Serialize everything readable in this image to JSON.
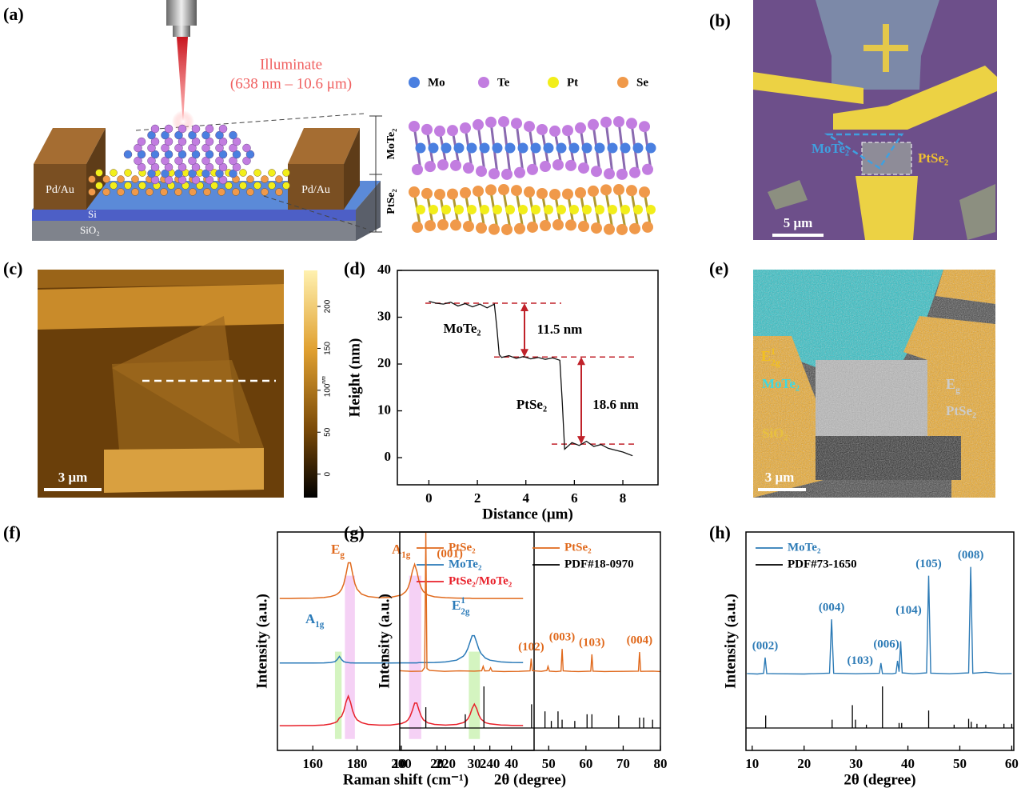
{
  "panel_labels": [
    "(a)",
    "(b)",
    "(c)",
    "(d)",
    "(e)",
    "(f)",
    "(g)",
    "(h)"
  ],
  "panel_a": {
    "illuminate": "Illuminate",
    "wavelength": "(638 nm – 10.6 μm)",
    "atoms": [
      {
        "name": "Mo",
        "color": "#4a7fe0"
      },
      {
        "name": "Te",
        "color": "#c27de0"
      },
      {
        "name": "Pt",
        "color": "#f2ee1a"
      },
      {
        "name": "Se",
        "color": "#f0994a"
      }
    ],
    "electrodes": [
      "Pd/Au",
      "Pd/Au"
    ],
    "si": "Si",
    "sio2": "SiO₂",
    "layers": [
      "MoTe₂",
      "PtSe₂"
    ]
  },
  "panel_b": {
    "mote2": "MoTe₂",
    "ptse2": "PtSe₂",
    "scale_bar": "5 μm"
  },
  "panel_c": {
    "scale_bar": "3 μm",
    "colorbar": {
      "range": [
        -28,
        243
      ],
      "ticks": [
        0,
        50,
        100,
        150,
        200
      ],
      "unit": "nm"
    }
  },
  "panel_e": {
    "e2g": {
      "base": "E",
      "sup": "1",
      "sub": "2g"
    },
    "mote2": "MoTe₂",
    "eg": {
      "base": "E",
      "sub": "g"
    },
    "ptse2": "PtSe₂",
    "sio2": "SiO₂",
    "scale_bar": "3 μm"
  },
  "chart_data": [
    {
      "type": "line",
      "xlabel": "Distance (μm)",
      "ylabel": "Height (nm)",
      "xlim": [
        -1.3,
        9.45
      ],
      "ylim": [
        -5.8,
        40
      ],
      "xticks": [
        0,
        2,
        4,
        6,
        8
      ],
      "yticks": [
        0,
        10,
        20,
        30,
        40
      ],
      "color": "#111111",
      "x": [
        0,
        0.3,
        0.6,
        0.9,
        1.2,
        1.5,
        1.8,
        2.1,
        2.4,
        2.7,
        2.8,
        2.9,
        3.0,
        3.3,
        3.6,
        3.9,
        4.2,
        4.5,
        4.8,
        5.1,
        5.4,
        5.5,
        5.6,
        5.9,
        6.2,
        6.5,
        6.8,
        7.1,
        7.4,
        7.7,
        8.0,
        8.2,
        8.4
      ],
      "values": [
        33.4,
        33.0,
        32.8,
        33.2,
        32.4,
        32.9,
        32.2,
        32.8,
        32.0,
        32.8,
        28,
        22,
        21.4,
        21.8,
        21.2,
        21.6,
        21.1,
        21.4,
        21.0,
        21.3,
        20.8,
        12,
        1.8,
        3.2,
        2.6,
        3.5,
        2.4,
        2.8,
        2.0,
        1.6,
        1.2,
        0.8,
        0.4
      ],
      "reference_lines": [
        33.0,
        21.5,
        2.9
      ],
      "reference_color": "#c0222a",
      "annotations": [
        "MoTe₂",
        "PtSe₂",
        "11.5 nm",
        "18.6 nm"
      ]
    },
    {
      "type": "line",
      "xlabel": "Raman shift (cm⁻¹)",
      "ylabel": "Intensity (a.u.)",
      "xlim": [
        144,
        260
      ],
      "ylim": [
        0,
        11.5
      ],
      "xticks": [
        160,
        180,
        200,
        220,
        240
      ],
      "legend": "top-right",
      "x": [
        145,
        150,
        155,
        160,
        165,
        168,
        170,
        171,
        172,
        173,
        174,
        175,
        176,
        177,
        178,
        179,
        180,
        182,
        185,
        190,
        195,
        200,
        202,
        203,
        204,
        205,
        206,
        207,
        208,
        209,
        210,
        212,
        215,
        220,
        225,
        228,
        229,
        230,
        231,
        232,
        233,
        234,
        235,
        236,
        238,
        240,
        245,
        250,
        255
      ],
      "series": [
        {
          "name": "PtSe₂",
          "color": "#e0691c",
          "values": [
            8.0,
            8.0,
            8.01,
            8.02,
            8.05,
            8.1,
            8.17,
            8.23,
            8.33,
            8.49,
            8.78,
            9.28,
            9.88,
            9.88,
            9.28,
            8.78,
            8.49,
            8.23,
            8.1,
            8.04,
            8.06,
            8.18,
            8.36,
            8.56,
            8.9,
            9.44,
            9.8,
            9.44,
            8.9,
            8.56,
            8.36,
            8.18,
            8.09,
            8.04,
            8.02,
            8.01,
            8.01,
            8.01,
            8.01,
            8.0,
            8.0,
            8.0,
            8.0,
            8.0,
            8.0,
            8.0,
            8.0,
            8.0,
            8.0
          ]
        },
        {
          "name": "MoTe₂",
          "color": "#2a7ab8",
          "values": [
            4.6,
            4.6,
            4.6,
            4.6,
            4.61,
            4.63,
            4.67,
            4.78,
            4.95,
            4.78,
            4.67,
            4.64,
            4.62,
            4.61,
            4.61,
            4.6,
            4.6,
            4.6,
            4.6,
            4.6,
            4.6,
            4.61,
            4.61,
            4.61,
            4.61,
            4.61,
            4.61,
            4.61,
            4.62,
            4.62,
            4.62,
            4.62,
            4.63,
            4.66,
            4.75,
            4.96,
            5.11,
            5.35,
            5.7,
            6.04,
            6.04,
            5.7,
            5.35,
            5.11,
            4.86,
            4.75,
            4.66,
            4.63,
            4.62
          ]
        },
        {
          "name": "PtSe₂/MoTe₂",
          "color": "#e8202a",
          "values": [
            1.3,
            1.3,
            1.31,
            1.31,
            1.34,
            1.39,
            1.46,
            1.52,
            1.71,
            1.8,
            2.08,
            2.55,
            2.86,
            2.55,
            2.08,
            1.78,
            1.61,
            1.46,
            1.37,
            1.33,
            1.33,
            1.41,
            1.51,
            1.61,
            1.8,
            2.11,
            2.49,
            2.49,
            2.11,
            1.8,
            1.61,
            1.45,
            1.37,
            1.33,
            1.37,
            1.46,
            1.53,
            1.65,
            1.87,
            2.21,
            2.44,
            2.21,
            1.87,
            1.65,
            1.46,
            1.4,
            1.34,
            1.32,
            1.31
          ]
        }
      ],
      "bands": [
        {
          "x": [
            174.5,
            179
          ],
          "y": [
            0.6,
            9.2
          ],
          "color": "#f3c9f3"
        },
        {
          "x": [
            203.5,
            209
          ],
          "y": [
            0.6,
            9.2
          ],
          "color": "#f3c9f3"
        },
        {
          "x": [
            170,
            173
          ],
          "y": [
            0.6,
            5.2
          ],
          "color": "#cdf2b5"
        },
        {
          "x": [
            230.5,
            235.5
          ],
          "y": [
            0.6,
            5.2
          ],
          "color": "#cdf2b5"
        }
      ],
      "peak_names": [
        {
          "base": "E",
          "sub": "g",
          "color": "#e0691c"
        },
        {
          "base": "A",
          "sub": "1g",
          "color": "#e0691c"
        },
        {
          "base": "A",
          "sub": "1g",
          "color": "#2a7ab8"
        },
        {
          "base": "E",
          "sup": "1",
          "sub": "2g",
          "color": "#2a7ab8"
        }
      ]
    },
    {
      "type": "xrd",
      "xlabel": "2θ (degree)",
      "ylabel": "Intensity (a.u.)",
      "xlim": [
        10,
        80
      ],
      "ylim": [
        0,
        100
      ],
      "xticks": [
        10,
        20,
        30,
        40,
        50,
        60,
        70,
        80
      ],
      "legend": "top-right",
      "series": [
        {
          "name": "PtSe₂",
          "color": "#e0691c",
          "x": [
            10,
            13,
            16,
            16.7,
            17.0,
            17.3,
            18,
            22,
            26,
            30,
            32,
            32.4,
            32.8,
            34,
            34.4,
            34.8,
            38,
            42,
            45,
            45.3,
            45.6,
            48,
            49.5,
            49.8,
            50.2,
            52,
            53.3,
            53.6,
            53.9,
            56,
            58,
            61.3,
            61.6,
            61.9,
            65,
            70,
            74.1,
            74.4,
            74.7,
            78,
            80
          ],
          "values": [
            36.5,
            36.2,
            36.3,
            38,
            100,
            37.5,
            36.6,
            36.2,
            36.4,
            36.3,
            36.5,
            38.5,
            36.4,
            36.5,
            37.8,
            36.3,
            36.1,
            36.2,
            36.4,
            42,
            36.5,
            36.2,
            36.6,
            38.5,
            36.3,
            36.1,
            36.3,
            46.5,
            36.4,
            36.2,
            36.1,
            36.3,
            44,
            36.3,
            36.1,
            36.2,
            36.3,
            45,
            36.2,
            36.3,
            36.1
          ]
        }
      ],
      "reference": {
        "name": "PDF#18-0970",
        "color": "#000000",
        "x": [
          17.0,
          27.6,
          32.6,
          45.4,
          49.0,
          50.7,
          52.5,
          53.6,
          57.0,
          60.3,
          61.6,
          68.8,
          74.4,
          75.5,
          77.9
        ],
        "values": [
          50,
          33,
          100,
          57,
          40,
          17,
          40,
          20,
          17,
          33,
          33,
          30,
          25,
          25,
          20
        ]
      },
      "reference_ylim": [
        0,
        100
      ],
      "peak_labels": [
        {
          "x": 17.0,
          "text": "(001)"
        },
        {
          "x": 45.3,
          "text": "(102)"
        },
        {
          "x": 53.6,
          "text": "(003)"
        },
        {
          "x": 61.6,
          "text": "(103)"
        },
        {
          "x": 74.4,
          "text": "(004)"
        }
      ]
    },
    {
      "type": "xrd",
      "xlabel": "2θ (degree)",
      "ylabel": "Intensity (a.u.)",
      "xlim": [
        8.8,
        60.4
      ],
      "ylim": [
        0,
        100
      ],
      "xticks": [
        10,
        20,
        30,
        40,
        50,
        60
      ],
      "legend": "top-left",
      "series": [
        {
          "name": "MoTe₂",
          "color": "#2d7bb6",
          "x": [
            9,
            11,
            12.2,
            12.5,
            12.8,
            15,
            20,
            24.9,
            25.3,
            25.7,
            30,
            34.5,
            34.8,
            35.1,
            37,
            37.7,
            38.0,
            38.3,
            38.6,
            38.9,
            41,
            43.6,
            44.0,
            44.4,
            48,
            51.7,
            52.1,
            52.5,
            55,
            58,
            60
          ],
          "values": [
            35.2,
            35,
            35.3,
            42.5,
            35.2,
            35.1,
            35,
            35.4,
            60,
            35.3,
            35.1,
            35.3,
            40,
            35.2,
            35.1,
            35.4,
            41,
            36,
            50,
            35.5,
            35.1,
            35.5,
            80,
            35.4,
            35.1,
            35.5,
            84,
            35.3,
            35.8,
            35.1,
            35.2
          ]
        }
      ],
      "reference": {
        "name": "PDF#73-1650",
        "color": "#000000",
        "x": [
          12.6,
          25.4,
          29.3,
          29.9,
          32.0,
          35.1,
          38.3,
          38.8,
          44.0,
          48.9,
          51.7,
          52.2,
          53.3,
          55.0,
          58.5,
          60.0
        ],
        "values": [
          30,
          20,
          55,
          20,
          8,
          100,
          12,
          12,
          42,
          8,
          22,
          15,
          10,
          8,
          10,
          10
        ]
      },
      "reference_ylim": [
        0,
        100
      ],
      "peak_labels": [
        {
          "x": 12.5,
          "text": "(002)"
        },
        {
          "x": 25.3,
          "text": "(004)"
        },
        {
          "x": 34.8,
          "text": "(103)"
        },
        {
          "x": 38.0,
          "text": "(006)"
        },
        {
          "x": 38.6,
          "text": "(104)"
        },
        {
          "x": 44.0,
          "text": "(105)"
        },
        {
          "x": 52.1,
          "text": "(008)"
        }
      ]
    }
  ]
}
